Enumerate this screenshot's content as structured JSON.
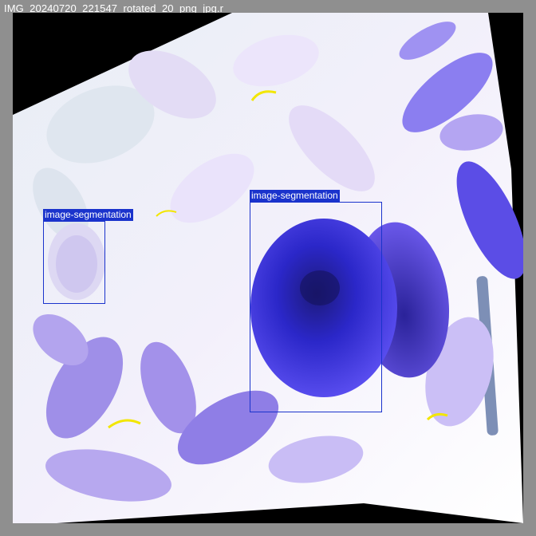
{
  "image": {
    "filename": "IMG_20240720_221547_rotated_20_png_jpg.r"
  },
  "annotations": [
    {
      "label": "image-segmentation",
      "color": "#1a33cc"
    },
    {
      "label": "image-segmentation",
      "color": "#1a33cc"
    }
  ],
  "colors": {
    "background_frame": "#8f8f8f",
    "box_color": "#1a33cc",
    "fruit_blue": "#3a2ee0",
    "leaf_purple": "#a797ef"
  }
}
